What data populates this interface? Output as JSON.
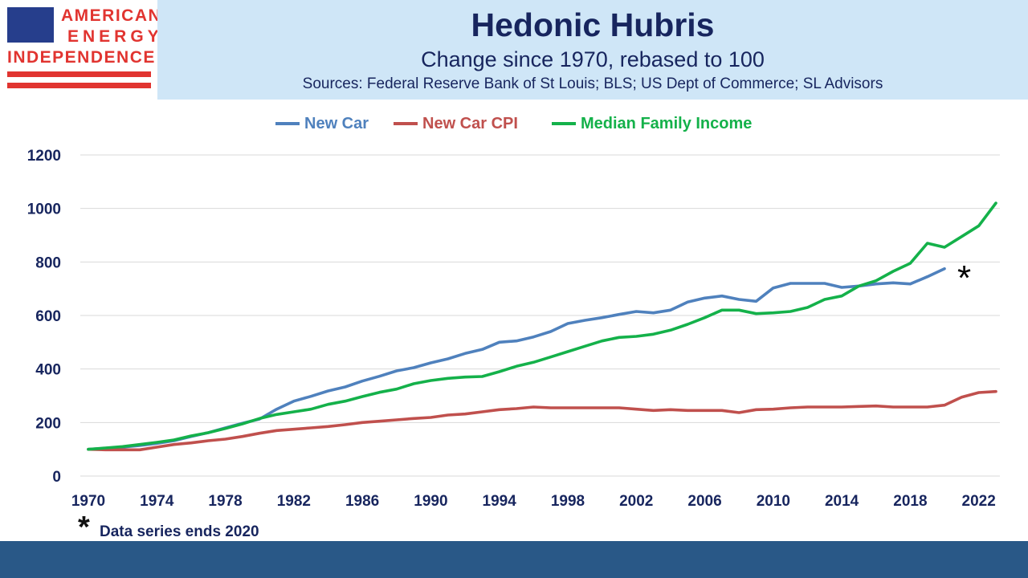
{
  "logo": {
    "line1": "AMERICAN",
    "line2": "ENERGY",
    "line3": "INDEPENDENCE"
  },
  "header": {
    "title": "Hedonic Hubris",
    "subtitle": "Change since 1970, rebased to 100",
    "sources": "Sources: Federal Reserve Bank of St Louis; BLS; US Dept of Commerce; SL Advisors"
  },
  "footnote": {
    "symbol": "*",
    "text": "Data series ends 2020"
  },
  "chart_data": {
    "type": "line",
    "title": "Hedonic Hubris",
    "subtitle": "Change since 1970, rebased to 100",
    "xlabel": "",
    "ylabel": "",
    "xlim": [
      1970,
      2023
    ],
    "ylim": [
      0,
      1200
    ],
    "yticks": [
      0,
      200,
      400,
      600,
      800,
      1000,
      1200
    ],
    "xticks": [
      1970,
      1974,
      1978,
      1982,
      1986,
      1990,
      1994,
      1998,
      2002,
      2006,
      2010,
      2014,
      2018,
      2022
    ],
    "grid": "horizontal",
    "legend": "top",
    "annotation": "*",
    "series": [
      {
        "name": "New Car",
        "color": "#4f81bd",
        "x": [
          1970,
          1971,
          1972,
          1973,
          1974,
          1975,
          1976,
          1977,
          1978,
          1979,
          1980,
          1981,
          1982,
          1983,
          1984,
          1985,
          1986,
          1987,
          1988,
          1989,
          1990,
          1991,
          1992,
          1993,
          1994,
          1995,
          1996,
          1997,
          1998,
          1999,
          2000,
          2001,
          2002,
          2003,
          2004,
          2005,
          2006,
          2007,
          2008,
          2009,
          2010,
          2011,
          2012,
          2013,
          2014,
          2015,
          2016,
          2017,
          2018,
          2019,
          2020
        ],
        "values": [
          100,
          104,
          108,
          114,
          122,
          132,
          148,
          162,
          180,
          197,
          213,
          250,
          280,
          298,
          318,
          333,
          355,
          373,
          393,
          405,
          423,
          438,
          458,
          473,
          500,
          505,
          520,
          540,
          570,
          582,
          592,
          604,
          615,
          610,
          620,
          650,
          665,
          673,
          660,
          653,
          703,
          720,
          720,
          720,
          705,
          710,
          718,
          722,
          718,
          745,
          775
        ]
      },
      {
        "name": "New Car CPI",
        "color": "#c0504d",
        "x": [
          1970,
          1971,
          1972,
          1973,
          1974,
          1975,
          1976,
          1977,
          1978,
          1979,
          1980,
          1981,
          1982,
          1983,
          1984,
          1985,
          1986,
          1987,
          1988,
          1989,
          1990,
          1991,
          1992,
          1993,
          1994,
          1995,
          1996,
          1997,
          1998,
          1999,
          2000,
          2001,
          2002,
          2003,
          2004,
          2005,
          2006,
          2007,
          2008,
          2009,
          2010,
          2011,
          2012,
          2013,
          2014,
          2015,
          2016,
          2017,
          2018,
          2019,
          2020,
          2021,
          2022,
          2023
        ],
        "values": [
          100,
          98,
          98,
          98,
          108,
          118,
          124,
          132,
          138,
          148,
          160,
          170,
          175,
          180,
          185,
          192,
          200,
          205,
          210,
          215,
          219,
          228,
          232,
          240,
          248,
          252,
          258,
          255,
          255,
          255,
          255,
          255,
          250,
          245,
          248,
          245,
          245,
          245,
          237,
          248,
          250,
          255,
          258,
          258,
          258,
          260,
          262,
          258,
          258,
          258,
          265,
          295,
          312,
          316
        ]
      },
      {
        "name": "Median Family Income",
        "color": "#14b14a",
        "x": [
          1970,
          1971,
          1972,
          1973,
          1974,
          1975,
          1976,
          1977,
          1978,
          1979,
          1980,
          1981,
          1982,
          1983,
          1984,
          1985,
          1986,
          1987,
          1988,
          1989,
          1990,
          1991,
          1992,
          1993,
          1994,
          1995,
          1996,
          1997,
          1998,
          1999,
          2000,
          2001,
          2002,
          2003,
          2004,
          2005,
          2006,
          2007,
          2008,
          2009,
          2010,
          2011,
          2012,
          2013,
          2014,
          2015,
          2016,
          2017,
          2018,
          2019,
          2020,
          2021,
          2022,
          2023
        ],
        "values": [
          100,
          105,
          110,
          118,
          126,
          135,
          150,
          162,
          178,
          195,
          215,
          230,
          240,
          250,
          268,
          280,
          297,
          313,
          325,
          345,
          357,
          365,
          370,
          372,
          390,
          410,
          425,
          445,
          465,
          485,
          505,
          518,
          522,
          530,
          545,
          567,
          592,
          620,
          620,
          607,
          610,
          615,
          630,
          660,
          673,
          710,
          730,
          765,
          795,
          870,
          855,
          895,
          935,
          1020
        ]
      }
    ]
  }
}
